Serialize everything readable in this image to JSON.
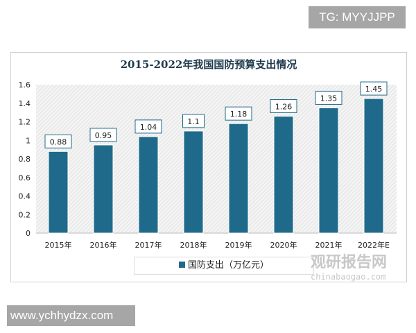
{
  "watermarks": {
    "top": "TG: MYYJJPP",
    "bottom": "www.ychhydzx.com",
    "logo_cn": "观研报告网",
    "logo_en": "chinabaogao.com"
  },
  "chart_data": {
    "type": "bar",
    "title": "2015-2022年我国国防预算支出情况",
    "categories": [
      "2015年",
      "2016年",
      "2017年",
      "2018年",
      "2019年",
      "2020年",
      "2021年",
      "2022年E"
    ],
    "series": [
      {
        "name": "国防支出（万亿元）",
        "values": [
          0.88,
          0.95,
          1.04,
          1.1,
          1.18,
          1.26,
          1.35,
          1.45
        ],
        "color": "#1f6a8a"
      }
    ],
    "yticks": [
      "0",
      "0.2",
      "0.4",
      "0.6",
      "0.8",
      "1",
      "1.2",
      "1.4",
      "1.6"
    ],
    "ylim": [
      0,
      1.6
    ],
    "legend": "bottom",
    "grid": false
  }
}
